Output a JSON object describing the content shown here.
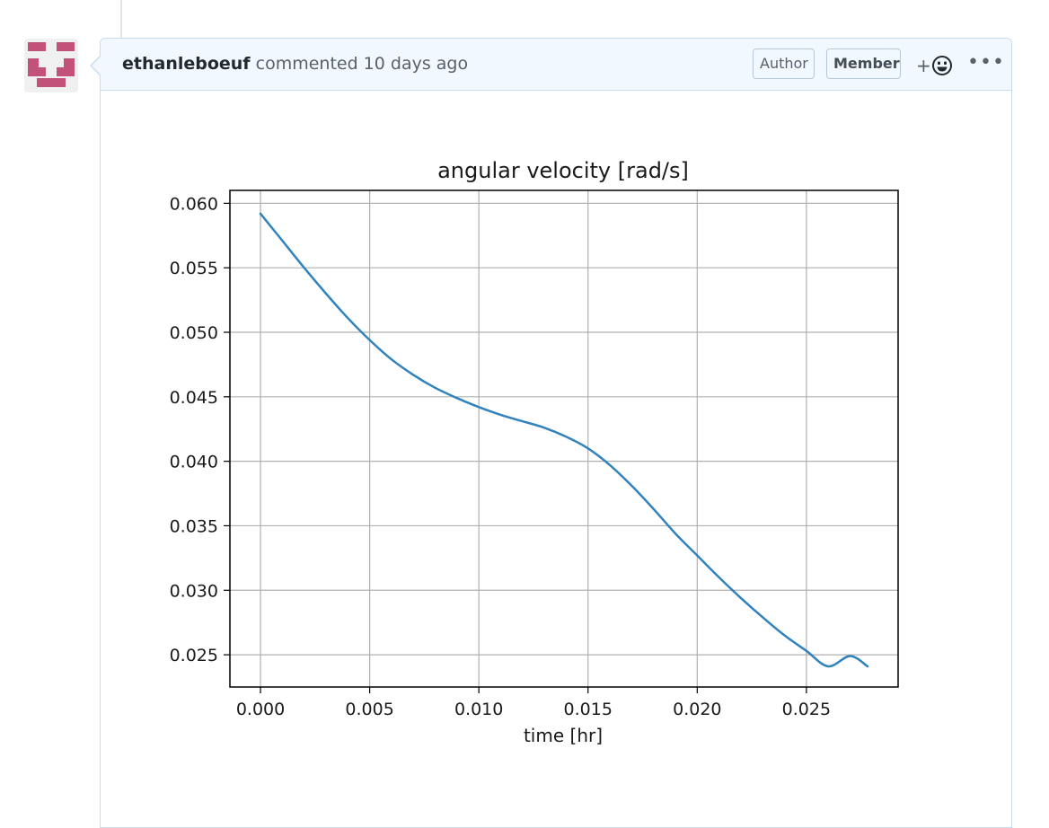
{
  "comment": {
    "author": "ethanleboeuf",
    "action": "commented 10 days ago",
    "badges": {
      "author": "Author",
      "member": "Member"
    },
    "reaction_label": "+",
    "more_label": "•••"
  },
  "colors": {
    "avatar": "#c2527a",
    "line": "#3182bd",
    "header_bg": "#f1f8ff"
  },
  "chart_data": {
    "type": "line",
    "title": "angular velocity [rad/s]",
    "xlabel": "time [hr]",
    "ylabel": "",
    "xlim": [
      -0.0014,
      0.0292
    ],
    "ylim": [
      0.0225,
      0.061
    ],
    "xticks": [
      0.0,
      0.005,
      0.01,
      0.015,
      0.02,
      0.025
    ],
    "xtick_labels": [
      "0.000",
      "0.005",
      "0.010",
      "0.015",
      "0.020",
      "0.025"
    ],
    "yticks": [
      0.025,
      0.03,
      0.035,
      0.04,
      0.045,
      0.05,
      0.055,
      0.06
    ],
    "ytick_labels": [
      "0.025",
      "0.030",
      "0.035",
      "0.040",
      "0.045",
      "0.050",
      "0.055",
      "0.060"
    ],
    "grid": true,
    "series": [
      {
        "x": [
          0.0,
          0.001,
          0.002,
          0.003,
          0.004,
          0.005,
          0.006,
          0.007,
          0.008,
          0.009,
          0.01,
          0.011,
          0.012,
          0.013,
          0.014,
          0.015,
          0.016,
          0.017,
          0.018,
          0.019,
          0.02,
          0.021,
          0.022,
          0.023,
          0.024,
          0.025,
          0.026,
          0.027,
          0.0278
        ],
        "y": [
          0.0592,
          0.0571,
          0.055,
          0.053,
          0.0511,
          0.0494,
          0.0479,
          0.0467,
          0.0457,
          0.0449,
          0.0442,
          0.0436,
          0.0431,
          0.0426,
          0.0419,
          0.041,
          0.0397,
          0.0381,
          0.0363,
          0.0344,
          0.0327,
          0.031,
          0.0294,
          0.0279,
          0.0265,
          0.0253,
          0.0241,
          0.0231,
          0.0241
        ]
      }
    ]
  }
}
